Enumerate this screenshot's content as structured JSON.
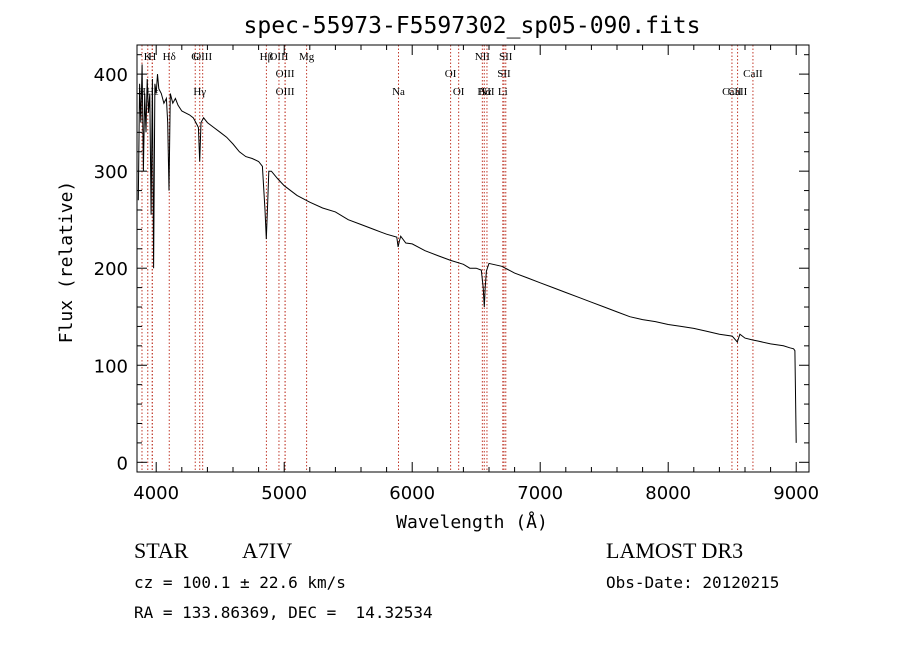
{
  "chart_data": {
    "type": "line",
    "title": "spec-55973-F5597302_sp05-090.fits",
    "xlabel": "Wavelength (Å)",
    "ylabel": "Flux (relative)",
    "xlim": [
      3850,
      9100
    ],
    "ylim": [
      -10,
      430
    ],
    "xticks": [
      4000,
      5000,
      6000,
      7000,
      8000,
      9000
    ],
    "xtick_labels": [
      "4000",
      "5000",
      "6000",
      "7000",
      "8000",
      "9000"
    ],
    "yticks": [
      0,
      100,
      200,
      300,
      400
    ],
    "ytick_labels": [
      "0",
      "100",
      "200",
      "300",
      "400"
    ],
    "series": [
      {
        "name": "flux",
        "x": [
          3860,
          3870,
          3880,
          3890,
          3900,
          3910,
          3920,
          3930,
          3940,
          3950,
          3960,
          3970,
          3980,
          3990,
          4000,
          4010,
          4020,
          4040,
          4060,
          4080,
          4090,
          4100,
          4110,
          4130,
          4150,
          4170,
          4200,
          4230,
          4260,
          4290,
          4310,
          4330,
          4340,
          4350,
          4370,
          4400,
          4450,
          4500,
          4550,
          4600,
          4650,
          4700,
          4750,
          4800,
          4830,
          4850,
          4860,
          4870,
          4880,
          4900,
          4950,
          5000,
          5100,
          5200,
          5300,
          5400,
          5500,
          5600,
          5700,
          5800,
          5880,
          5890,
          5900,
          5910,
          5950,
          6000,
          6100,
          6200,
          6300,
          6400,
          6450,
          6500,
          6540,
          6555,
          6563,
          6570,
          6580,
          6600,
          6700,
          6800,
          6900,
          7000,
          7100,
          7200,
          7300,
          7400,
          7500,
          7600,
          7700,
          7800,
          7900,
          8000,
          8100,
          8200,
          8300,
          8400,
          8500,
          8540,
          8560,
          8600,
          8660,
          8700,
          8800,
          8900,
          8950,
          8980,
          8990,
          9000
        ],
        "y": [
          270,
          390,
          350,
          410,
          300,
          380,
          340,
          395,
          360,
          380,
          255,
          395,
          200,
          390,
          380,
          400,
          385,
          380,
          370,
          375,
          350,
          280,
          380,
          370,
          375,
          368,
          362,
          360,
          358,
          355,
          350,
          345,
          310,
          350,
          355,
          350,
          345,
          340,
          335,
          328,
          320,
          315,
          313,
          310,
          305,
          260,
          230,
          265,
          300,
          300,
          292,
          285,
          275,
          268,
          262,
          258,
          250,
          245,
          240,
          235,
          232,
          222,
          228,
          233,
          226,
          225,
          218,
          213,
          208,
          204,
          200,
          200,
          198,
          180,
          160,
          180,
          197,
          205,
          202,
          195,
          190,
          185,
          180,
          175,
          170,
          165,
          160,
          155,
          150,
          147,
          145,
          142,
          140,
          138,
          135,
          132,
          130,
          124,
          132,
          128,
          126,
          125,
          122,
          120,
          118,
          117,
          115,
          20
        ]
      }
    ],
    "lines_top": [
      {
        "label": "K",
        "x": 3934
      },
      {
        "label": "H",
        "x": 3969
      },
      {
        "label": "Hδ",
        "x": 4102
      },
      {
        "label": "G",
        "x": 4305
      },
      {
        "label": "OIII",
        "x": 4363
      },
      {
        "label": "Hβ",
        "x": 4861
      },
      {
        "label": "OIII",
        "x": 4959
      },
      {
        "label": "OIII",
        "x": 5007
      },
      {
        "label": "Mg",
        "x": 5175
      },
      {
        "label": "OI",
        "x": 6300
      },
      {
        "label": "NII",
        "x": 6548
      },
      {
        "label": "SII",
        "x": 6717
      },
      {
        "label": "SII",
        "x": 6731
      },
      {
        "label": "CaII",
        "x": 8662
      }
    ],
    "lines_bottom": [
      {
        "label": "H",
        "x": 3889
      },
      {
        "label": "Hε",
        "x": 3970
      },
      {
        "label": "Hγ",
        "x": 4340
      },
      {
        "label": "OIII",
        "x": 5007
      },
      {
        "label": "Na",
        "x": 5893
      },
      {
        "label": "OI",
        "x": 6363
      },
      {
        "label": "Hα",
        "x": 6563
      },
      {
        "label": "NII",
        "x": 6584
      },
      {
        "label": "Li",
        "x": 6708
      },
      {
        "label": "CaII",
        "x": 8498
      },
      {
        "label": "CaII",
        "x": 8542
      }
    ]
  },
  "info": {
    "object_class": "STAR",
    "subclass": "A7IV",
    "survey": "LAMOST DR3",
    "cz": "cz = 100.1 ± 22.6 km/s",
    "obs_date": "Obs-Date: 20120215",
    "radec": "RA = 133.86369, DEC =  14.32534"
  },
  "colors": {
    "line_marker": "#c0392b",
    "spectrum": "#000000",
    "axes": "#000000"
  }
}
